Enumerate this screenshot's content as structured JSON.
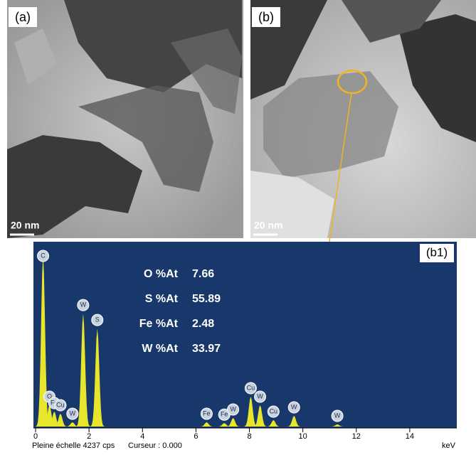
{
  "panels": [
    {
      "label": "(a)",
      "scale_bar": "20 nm"
    },
    {
      "label": "(b)",
      "scale_bar": "20 nm"
    }
  ],
  "spectrum": {
    "label": "(b1)",
    "xlim": [
      0,
      15.6
    ],
    "ylim": [
      0,
      4237
    ],
    "xticks": [
      0,
      2,
      4,
      6,
      8,
      10,
      12,
      14
    ],
    "x_unit": "keV",
    "footer": [
      "Pleine échelle 4237 cps",
      "Curseur : 0.000"
    ],
    "composition": [
      {
        "element": "O %At",
        "value": 7.66
      },
      {
        "element": "S %At",
        "value": 55.89
      },
      {
        "element": "Fe %At",
        "value": 2.48
      },
      {
        "element": "W %At",
        "value": 33.97
      }
    ],
    "peaks": [
      {
        "label": "C",
        "energy": 0.28,
        "counts": 4000
      },
      {
        "label": "O",
        "energy": 0.52,
        "counts": 500
      },
      {
        "label": "Fe",
        "energy": 0.7,
        "counts": 350
      },
      {
        "label": "Cu",
        "energy": 0.93,
        "counts": 300
      },
      {
        "label": "W",
        "energy": 1.38,
        "counts": 100
      },
      {
        "label": "W",
        "energy": 1.78,
        "counts": 2650
      },
      {
        "label": "S",
        "energy": 2.31,
        "counts": 2300
      },
      {
        "label": "Fe",
        "energy": 6.4,
        "counts": 100
      },
      {
        "label": "Fe",
        "energy": 7.06,
        "counts": 80
      },
      {
        "label": "W",
        "energy": 7.39,
        "counts": 200
      },
      {
        "label": "Cu",
        "energy": 8.05,
        "counts": 700
      },
      {
        "label": "W",
        "energy": 8.4,
        "counts": 500
      },
      {
        "label": "Cu",
        "energy": 8.9,
        "counts": 150
      },
      {
        "label": "W",
        "energy": 9.67,
        "counts": 250
      },
      {
        "label": "W",
        "energy": 11.29,
        "counts": 50
      }
    ]
  }
}
